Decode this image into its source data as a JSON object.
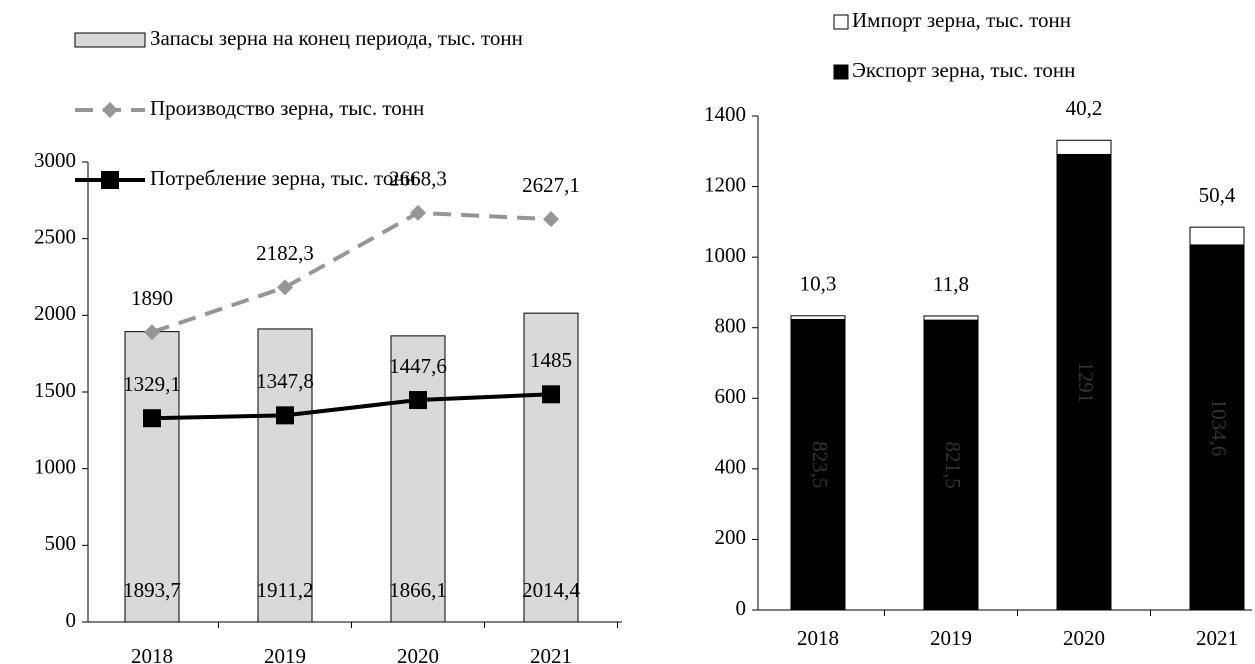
{
  "chart_data": [
    {
      "type": "combo",
      "categories": [
        "2018",
        "2019",
        "2020",
        "2021"
      ],
      "ylim": [
        0,
        3000
      ],
      "yticks": [
        0,
        500,
        1000,
        1500,
        2000,
        2500,
        3000
      ],
      "series": [
        {
          "name": "Запасы зерна на конец периода, тыс. тонн",
          "type": "bar",
          "color": "#d9d9d9",
          "values": [
            1893.7,
            1911.2,
            1866.1,
            2014.4
          ],
          "value_labels": [
            "1893,7",
            "1911,2",
            "1866,1",
            "2014,4"
          ]
        },
        {
          "name": "Производство зерна, тыс. тонн",
          "type": "line",
          "dashed": true,
          "marker": "diamond",
          "color": "#969696",
          "values": [
            1890,
            2182.3,
            2668.3,
            2627.1
          ],
          "value_labels": [
            "1890",
            "2182,3",
            "2668,3",
            "2627,1"
          ]
        },
        {
          "name": "Потребление зерна, тыс. тонн",
          "type": "line",
          "dashed": false,
          "marker": "square",
          "color": "#000000",
          "values": [
            1329.1,
            1347.8,
            1447.6,
            1485
          ],
          "value_labels": [
            "1329,1",
            "1347,8",
            "1447,6",
            "1485"
          ]
        }
      ]
    },
    {
      "type": "stacked_bar",
      "categories": [
        "2018",
        "2019",
        "2020",
        "2021"
      ],
      "ylim": [
        0,
        1400
      ],
      "yticks": [
        0,
        200,
        400,
        600,
        800,
        1000,
        1200,
        1400
      ],
      "series": [
        {
          "name": "Экспорт зерна, тыс. тонн",
          "color": "#000000",
          "values": [
            823.5,
            821.5,
            1291,
            1034.6
          ],
          "value_labels": [
            "823,5",
            "821,5",
            "1291",
            "1034,6"
          ]
        },
        {
          "name": "Импорт зерна, тыс. тонн",
          "color": "#ffffff",
          "values": [
            10.3,
            11.8,
            40.2,
            50.4
          ],
          "value_labels": [
            "10,3",
            "11,8",
            "40,2",
            "50,4"
          ]
        }
      ]
    }
  ]
}
